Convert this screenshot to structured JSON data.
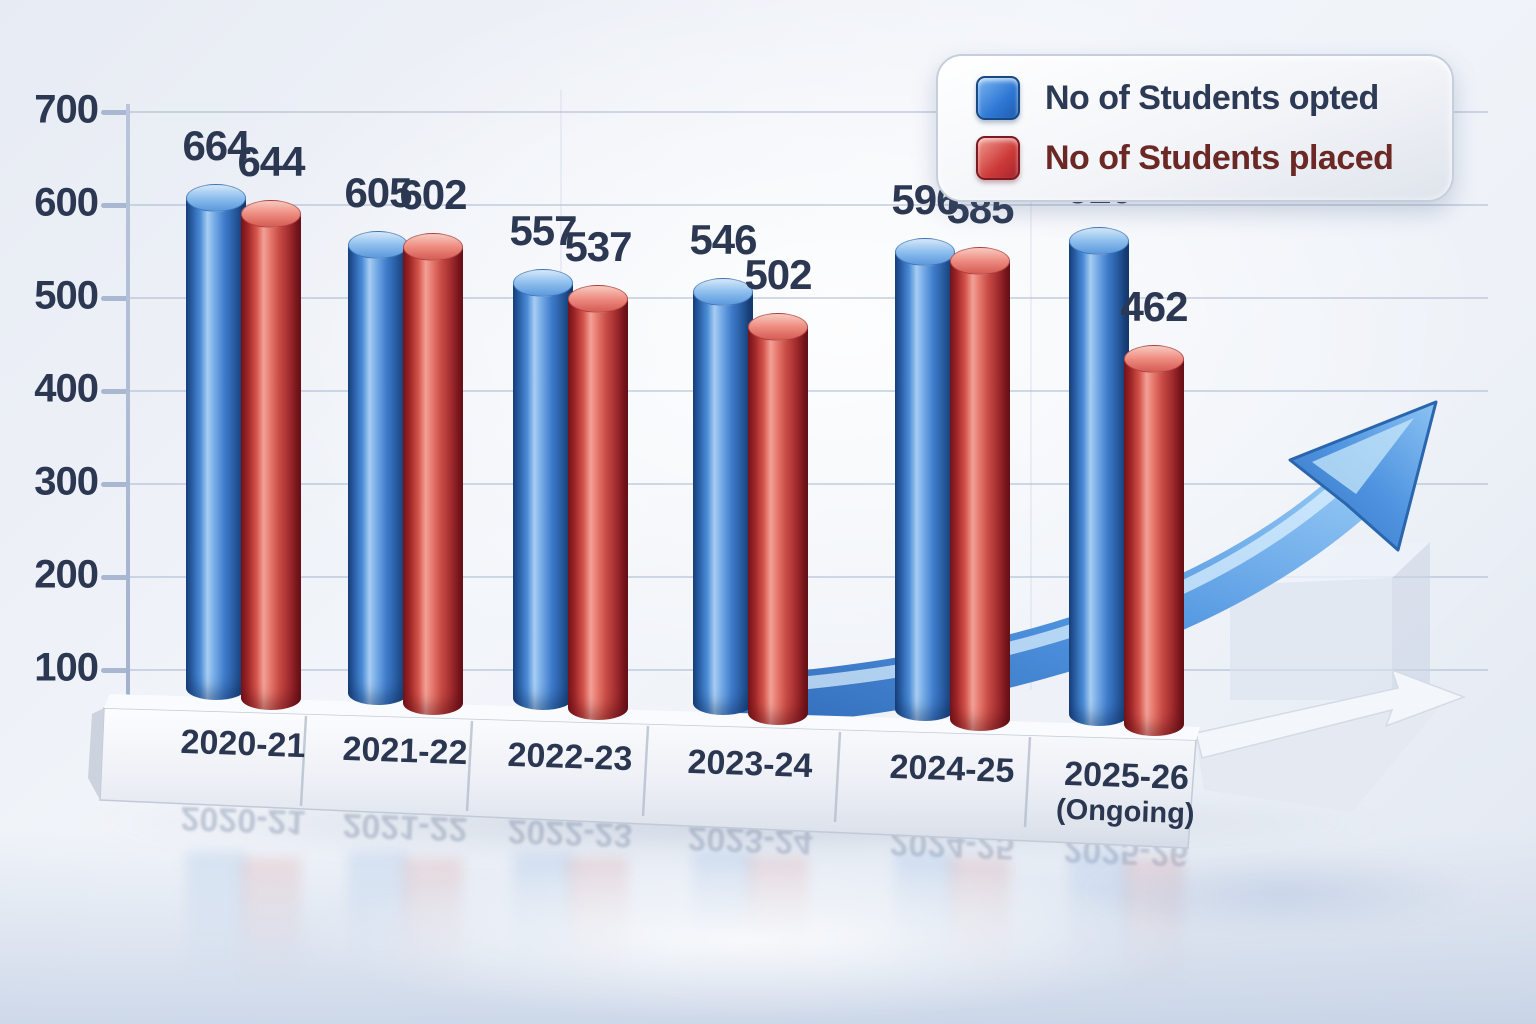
{
  "chart_data": {
    "type": "bar",
    "title": "",
    "categories": [
      "2020-21",
      "2021-22",
      "2022-23",
      "2023-24",
      "2024-25",
      "2025-26"
    ],
    "category_sublabels": [
      "",
      "",
      "",
      "",
      "",
      "(Ongoing)"
    ],
    "series": [
      {
        "name": "No of Students opted",
        "color": "#2f7fd0",
        "values": [
          664,
          605,
          557,
          546,
          596,
          610
        ]
      },
      {
        "name": "No of Students placed",
        "color": "#cf3a38",
        "values": [
          644,
          602,
          537,
          502,
          585,
          462
        ]
      }
    ],
    "ylim": [
      0,
      700
    ],
    "yticks": [
      700,
      600,
      500,
      400,
      300,
      200,
      100
    ],
    "xlabel": "",
    "ylabel": "",
    "grid": true,
    "legend_position": "top-right",
    "annotations": [
      "upward-trend-arrow"
    ]
  }
}
